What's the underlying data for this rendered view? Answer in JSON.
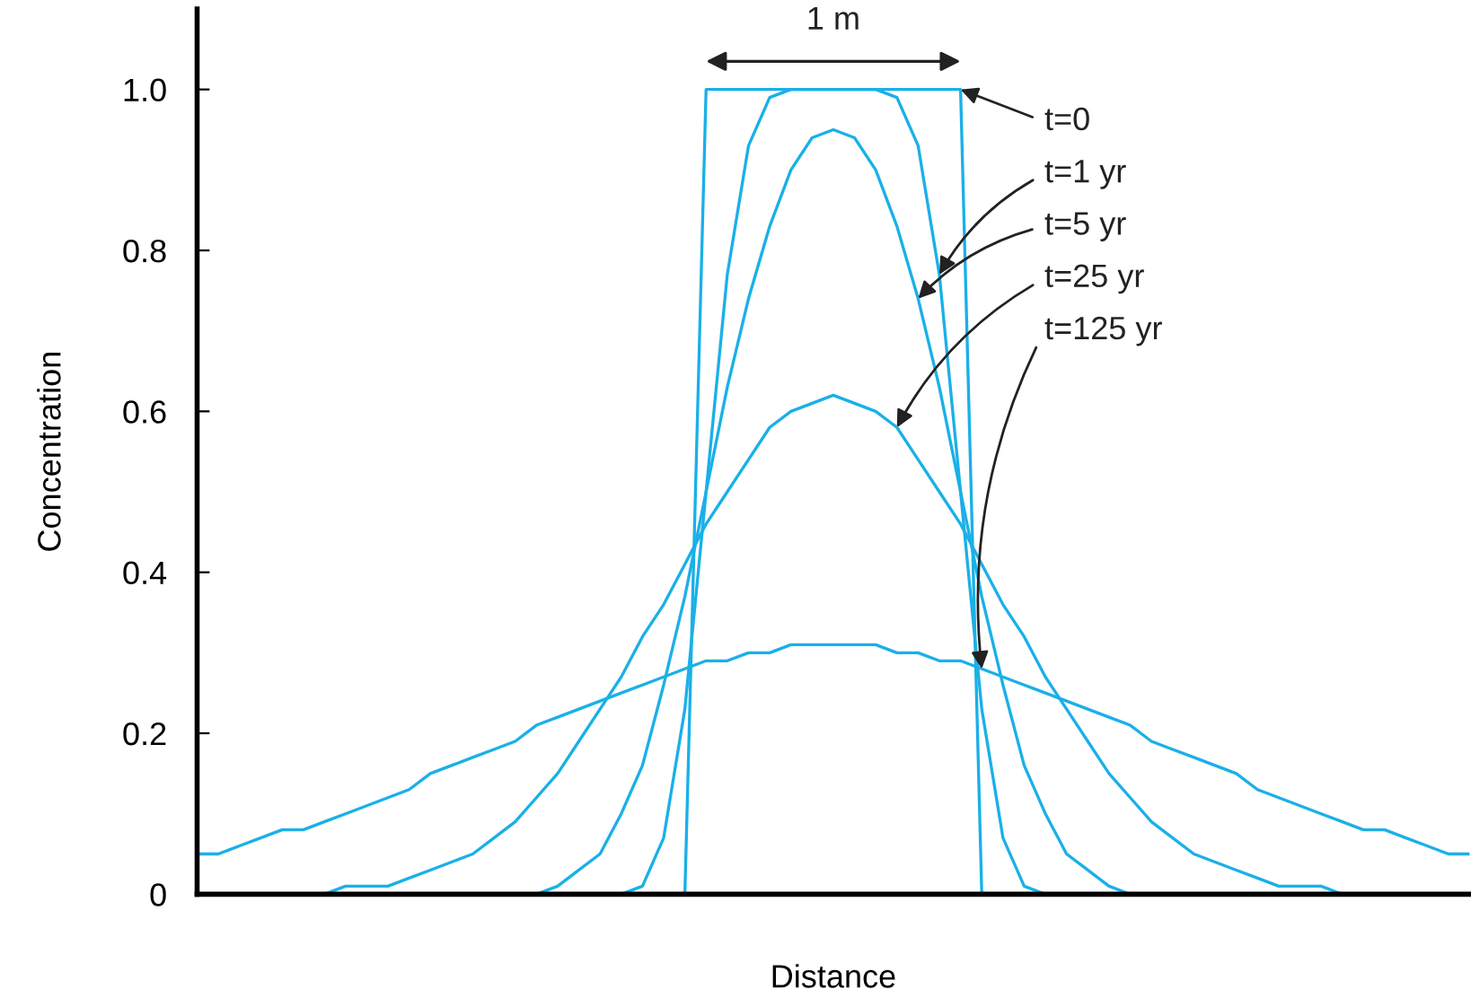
{
  "chart_data": {
    "type": "line",
    "xlabel": "Distance",
    "ylabel": "Concentration",
    "categories": [
      null,
      null,
      null,
      null,
      null,
      null,
      null,
      null,
      null,
      null,
      null,
      null,
      null,
      null,
      null,
      null,
      null,
      null,
      null,
      null,
      null,
      null,
      null,
      null,
      null,
      null,
      null,
      null,
      null,
      null,
      null,
      null,
      null,
      null,
      null,
      null,
      null,
      null,
      null,
      null,
      null,
      null,
      null,
      null,
      null,
      null,
      null,
      null,
      null,
      null,
      null,
      null,
      null,
      null,
      null,
      null,
      null,
      null,
      null,
      null,
      null
    ],
    "series": [
      {
        "color": "#1ab0e8",
        "values": [
          null,
          null,
          null,
          null,
          null,
          null,
          null,
          null,
          null,
          null,
          null,
          null,
          null,
          null,
          null,
          null,
          null,
          null,
          null,
          null,
          null,
          null,
          null,
          0,
          1,
          1,
          1,
          1,
          1,
          1,
          1,
          1,
          1,
          1,
          1,
          1,
          1,
          0,
          null,
          null,
          null,
          null,
          null,
          null,
          null,
          null,
          null,
          null,
          null,
          null,
          null,
          null,
          null,
          null,
          null,
          null,
          null,
          null,
          null,
          null,
          null
        ]
      },
      {
        "color": "#1ab0e8",
        "values": [
          null,
          null,
          null,
          null,
          null,
          null,
          null,
          null,
          null,
          null,
          null,
          null,
          null,
          null,
          null,
          null,
          null,
          null,
          null,
          null,
          0,
          0.01,
          0.07,
          0.23,
          0.5,
          0.77,
          0.93,
          0.99,
          1,
          1,
          1,
          1,
          1,
          0.99,
          0.93,
          0.77,
          0.5,
          0.23,
          0.07,
          0.01,
          0,
          null,
          null,
          null,
          null,
          null,
          null,
          null,
          null,
          null,
          null,
          null,
          null,
          null,
          null,
          null,
          null,
          null,
          null,
          null,
          null
        ]
      },
      {
        "color": "#1ab0e8",
        "values": [
          null,
          null,
          null,
          null,
          null,
          null,
          null,
          null,
          null,
          null,
          null,
          null,
          null,
          null,
          null,
          null,
          0,
          0.01,
          0.03,
          0.05,
          0.1,
          0.16,
          0.26,
          0.37,
          0.5,
          0.63,
          0.74,
          0.83,
          0.9,
          0.94,
          0.95,
          0.94,
          0.9,
          0.83,
          0.74,
          0.63,
          0.5,
          0.37,
          0.26,
          0.16,
          0.1,
          0.05,
          0.03,
          0.01,
          0,
          null,
          null,
          null,
          null,
          null,
          null,
          null,
          null,
          null,
          null,
          null,
          null,
          null,
          null,
          null,
          null
        ]
      },
      {
        "color": "#1ab0e8",
        "values": [
          null,
          null,
          null,
          null,
          null,
          null,
          0,
          0.01,
          0.01,
          0.01,
          0.02,
          0.03,
          0.04,
          0.05,
          0.07,
          0.09,
          0.12,
          0.15,
          0.19,
          0.23,
          0.27,
          0.32,
          0.36,
          0.41,
          0.46,
          0.5,
          0.54,
          0.58,
          0.6,
          0.61,
          0.62,
          0.61,
          0.6,
          0.58,
          0.54,
          0.5,
          0.46,
          0.41,
          0.36,
          0.32,
          0.27,
          0.23,
          0.19,
          0.15,
          0.12,
          0.09,
          0.07,
          0.05,
          0.04,
          0.03,
          0.02,
          0.01,
          0.01,
          0.01,
          0,
          null,
          null,
          null,
          null,
          null,
          null
        ]
      },
      {
        "color": "#1ab0e8",
        "values": [
          0.05,
          0.05,
          0.06,
          0.07,
          0.08,
          0.08,
          0.09,
          0.1,
          0.11,
          0.12,
          0.13,
          0.15,
          0.16,
          0.17,
          0.18,
          0.19,
          0.21,
          0.22,
          0.23,
          0.24,
          0.25,
          0.26,
          0.27,
          0.28,
          0.29,
          0.29,
          0.3,
          0.3,
          0.31,
          0.31,
          0.31,
          0.31,
          0.31,
          0.3,
          0.3,
          0.29,
          0.29,
          0.28,
          0.27,
          0.26,
          0.25,
          0.24,
          0.23,
          0.22,
          0.21,
          0.19,
          0.18,
          0.17,
          0.16,
          0.15,
          0.13,
          0.12,
          0.11,
          0.1,
          0.09,
          0.08,
          0.08,
          0.07,
          0.06,
          0.05,
          0.05
        ]
      }
    ],
    "annotations": [
      "1 m",
      "t=0",
      "t=1 yr",
      "t=5 yr",
      "t=25 yr",
      "t=125 yr"
    ],
    "ylim": [
      0,
      1.1
    ],
    "yticks": [
      0,
      0.2,
      0.4,
      0.6,
      0.8,
      {
        "value": 1,
        "label": "1.0"
      }
    ],
    "tick_labels": "y",
    "grid": false,
    "legend": false,
    "marker": "none",
    "line_style": "solid"
  }
}
